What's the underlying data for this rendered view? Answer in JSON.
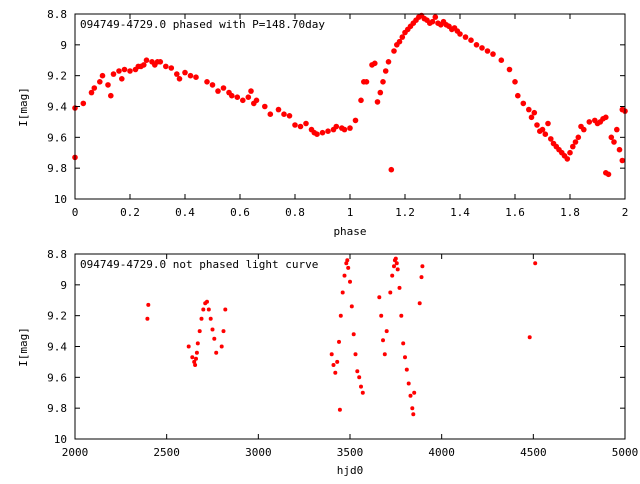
{
  "chart_data": [
    {
      "type": "scatter",
      "title": "094749-4729.0 phased with P=148.70day",
      "xlabel": "phase",
      "ylabel": "I[mag]",
      "xlim": [
        0,
        2
      ],
      "ylim": [
        10,
        8.8
      ],
      "y_inverted": true,
      "grid": false,
      "legend": "none",
      "marker_color": "#ff0000",
      "marker": "filled-circle",
      "x_ticks": [
        "0",
        "0.2",
        "0.4",
        "0.6",
        "0.8",
        "1",
        "1.2",
        "1.4",
        "1.6",
        "1.8",
        "2"
      ],
      "y_ticks": [
        "8.8",
        "9",
        "9.2",
        "9.4",
        "9.6",
        "9.8",
        "10"
      ],
      "points": [
        [
          0.0,
          9.41
        ],
        [
          0.0,
          9.73
        ],
        [
          0.03,
          9.38
        ],
        [
          0.06,
          9.31
        ],
        [
          0.07,
          9.28
        ],
        [
          0.09,
          9.24
        ],
        [
          0.1,
          9.2
        ],
        [
          0.12,
          9.26
        ],
        [
          0.13,
          9.33
        ],
        [
          0.14,
          9.19
        ],
        [
          0.16,
          9.17
        ],
        [
          0.17,
          9.22
        ],
        [
          0.18,
          9.16
        ],
        [
          0.2,
          9.17
        ],
        [
          0.22,
          9.16
        ],
        [
          0.23,
          9.14
        ],
        [
          0.24,
          9.14
        ],
        [
          0.25,
          9.13
        ],
        [
          0.26,
          9.1
        ],
        [
          0.28,
          9.11
        ],
        [
          0.29,
          9.13
        ],
        [
          0.3,
          9.11
        ],
        [
          0.31,
          9.11
        ],
        [
          0.33,
          9.14
        ],
        [
          0.35,
          9.15
        ],
        [
          0.37,
          9.19
        ],
        [
          0.38,
          9.22
        ],
        [
          0.4,
          9.18
        ],
        [
          0.42,
          9.2
        ],
        [
          0.44,
          9.21
        ],
        [
          0.48,
          9.24
        ],
        [
          0.5,
          9.26
        ],
        [
          0.52,
          9.3
        ],
        [
          0.54,
          9.28
        ],
        [
          0.56,
          9.31
        ],
        [
          0.57,
          9.33
        ],
        [
          0.59,
          9.34
        ],
        [
          0.61,
          9.36
        ],
        [
          0.63,
          9.34
        ],
        [
          0.64,
          9.3
        ],
        [
          0.65,
          9.38
        ],
        [
          0.66,
          9.36
        ],
        [
          0.69,
          9.4
        ],
        [
          0.71,
          9.45
        ],
        [
          0.74,
          9.42
        ],
        [
          0.76,
          9.45
        ],
        [
          0.78,
          9.46
        ],
        [
          0.8,
          9.52
        ],
        [
          0.82,
          9.53
        ],
        [
          0.84,
          9.51
        ],
        [
          0.86,
          9.55
        ],
        [
          0.87,
          9.57
        ],
        [
          0.88,
          9.58
        ],
        [
          0.9,
          9.57
        ],
        [
          0.92,
          9.56
        ],
        [
          0.94,
          9.55
        ],
        [
          0.95,
          9.53
        ],
        [
          0.97,
          9.54
        ],
        [
          0.98,
          9.55
        ],
        [
          1.0,
          9.54
        ],
        [
          1.02,
          9.49
        ],
        [
          1.04,
          9.36
        ],
        [
          1.05,
          9.24
        ],
        [
          1.06,
          9.24
        ],
        [
          1.08,
          9.13
        ],
        [
          1.09,
          9.12
        ],
        [
          1.1,
          9.37
        ],
        [
          1.11,
          9.31
        ],
        [
          1.12,
          9.24
        ],
        [
          1.13,
          9.17
        ],
        [
          1.14,
          9.11
        ],
        [
          1.15,
          9.81
        ],
        [
          1.16,
          9.04
        ],
        [
          1.17,
          9.0
        ],
        [
          1.18,
          8.98
        ],
        [
          1.19,
          8.95
        ],
        [
          1.2,
          8.92
        ],
        [
          1.21,
          8.9
        ],
        [
          1.22,
          8.88
        ],
        [
          1.23,
          8.86
        ],
        [
          1.24,
          8.84
        ],
        [
          1.25,
          8.82
        ],
        [
          1.26,
          8.81
        ],
        [
          1.27,
          8.83
        ],
        [
          1.28,
          8.84
        ],
        [
          1.29,
          8.86
        ],
        [
          1.3,
          8.85
        ],
        [
          1.31,
          8.82
        ],
        [
          1.32,
          8.86
        ],
        [
          1.33,
          8.87
        ],
        [
          1.34,
          8.85
        ],
        [
          1.35,
          8.87
        ],
        [
          1.36,
          8.88
        ],
        [
          1.37,
          8.9
        ],
        [
          1.38,
          8.89
        ],
        [
          1.39,
          8.91
        ],
        [
          1.4,
          8.93
        ],
        [
          1.42,
          8.95
        ],
        [
          1.44,
          8.97
        ],
        [
          1.46,
          9.0
        ],
        [
          1.48,
          9.02
        ],
        [
          1.5,
          9.04
        ],
        [
          1.52,
          9.06
        ],
        [
          1.55,
          9.1
        ],
        [
          1.58,
          9.16
        ],
        [
          1.6,
          9.24
        ],
        [
          1.61,
          9.33
        ],
        [
          1.63,
          9.38
        ],
        [
          1.65,
          9.42
        ],
        [
          1.66,
          9.47
        ],
        [
          1.67,
          9.44
        ],
        [
          1.68,
          9.52
        ],
        [
          1.69,
          9.56
        ],
        [
          1.7,
          9.55
        ],
        [
          1.71,
          9.58
        ],
        [
          1.72,
          9.51
        ],
        [
          1.73,
          9.61
        ],
        [
          1.74,
          9.64
        ],
        [
          1.75,
          9.66
        ],
        [
          1.76,
          9.68
        ],
        [
          1.77,
          9.7
        ],
        [
          1.78,
          9.72
        ],
        [
          1.79,
          9.74
        ],
        [
          1.8,
          9.7
        ],
        [
          1.81,
          9.66
        ],
        [
          1.82,
          9.63
        ],
        [
          1.83,
          9.6
        ],
        [
          1.84,
          9.53
        ],
        [
          1.85,
          9.55
        ],
        [
          1.87,
          9.5
        ],
        [
          1.89,
          9.49
        ],
        [
          1.9,
          9.51
        ],
        [
          1.91,
          9.5
        ],
        [
          1.92,
          9.48
        ],
        [
          1.93,
          9.47
        ],
        [
          1.93,
          9.83
        ],
        [
          1.94,
          9.84
        ],
        [
          1.95,
          9.6
        ],
        [
          1.96,
          9.63
        ],
        [
          1.97,
          9.55
        ],
        [
          1.98,
          9.68
        ],
        [
          1.99,
          9.75
        ],
        [
          1.99,
          9.42
        ],
        [
          2.0,
          9.43
        ]
      ]
    },
    {
      "type": "scatter",
      "title": "094749-4729.0 not phased light curve",
      "xlabel": "hjd0",
      "ylabel": "I[mag]",
      "xlim": [
        2000,
        5000
      ],
      "ylim": [
        10,
        8.8
      ],
      "y_inverted": true,
      "grid": false,
      "legend": "none",
      "marker_color": "#ff0000",
      "marker": "filled-circle",
      "x_ticks": [
        "2000",
        "2500",
        "3000",
        "3500",
        "4000",
        "4500",
        "5000"
      ],
      "y_ticks": [
        "8.8",
        "9",
        "9.2",
        "9.4",
        "9.6",
        "9.8",
        "10"
      ],
      "points": [
        [
          2395,
          9.22
        ],
        [
          2400,
          9.13
        ],
        [
          2620,
          9.4
        ],
        [
          2640,
          9.47
        ],
        [
          2650,
          9.5
        ],
        [
          2655,
          9.52
        ],
        [
          2660,
          9.48
        ],
        [
          2665,
          9.44
        ],
        [
          2670,
          9.38
        ],
        [
          2680,
          9.3
        ],
        [
          2690,
          9.22
        ],
        [
          2700,
          9.16
        ],
        [
          2710,
          9.12
        ],
        [
          2720,
          9.11
        ],
        [
          2730,
          9.16
        ],
        [
          2740,
          9.22
        ],
        [
          2750,
          9.29
        ],
        [
          2760,
          9.35
        ],
        [
          2770,
          9.44
        ],
        [
          2800,
          9.4
        ],
        [
          2810,
          9.3
        ],
        [
          2820,
          9.16
        ],
        [
          3400,
          9.45
        ],
        [
          3410,
          9.52
        ],
        [
          3420,
          9.57
        ],
        [
          3430,
          9.5
        ],
        [
          3440,
          9.37
        ],
        [
          3445,
          9.81
        ],
        [
          3450,
          9.2
        ],
        [
          3460,
          9.05
        ],
        [
          3470,
          8.94
        ],
        [
          3480,
          8.86
        ],
        [
          3485,
          8.84
        ],
        [
          3490,
          8.89
        ],
        [
          3500,
          8.98
        ],
        [
          3510,
          9.14
        ],
        [
          3520,
          9.32
        ],
        [
          3530,
          9.45
        ],
        [
          3540,
          9.56
        ],
        [
          3550,
          9.6
        ],
        [
          3560,
          9.66
        ],
        [
          3570,
          9.7
        ],
        [
          3660,
          9.08
        ],
        [
          3670,
          9.2
        ],
        [
          3680,
          9.36
        ],
        [
          3690,
          9.45
        ],
        [
          3700,
          9.3
        ],
        [
          3720,
          9.05
        ],
        [
          3730,
          8.94
        ],
        [
          3740,
          8.88
        ],
        [
          3745,
          8.84
        ],
        [
          3750,
          8.83
        ],
        [
          3755,
          8.86
        ],
        [
          3760,
          8.9
        ],
        [
          3770,
          9.02
        ],
        [
          3780,
          9.2
        ],
        [
          3790,
          9.38
        ],
        [
          3800,
          9.47
        ],
        [
          3810,
          9.55
        ],
        [
          3820,
          9.64
        ],
        [
          3830,
          9.72
        ],
        [
          3840,
          9.8
        ],
        [
          3845,
          9.84
        ],
        [
          3850,
          9.7
        ],
        [
          3880,
          9.12
        ],
        [
          3890,
          8.95
        ],
        [
          3895,
          8.88
        ],
        [
          4480,
          9.34
        ],
        [
          4510,
          8.86
        ]
      ]
    }
  ]
}
